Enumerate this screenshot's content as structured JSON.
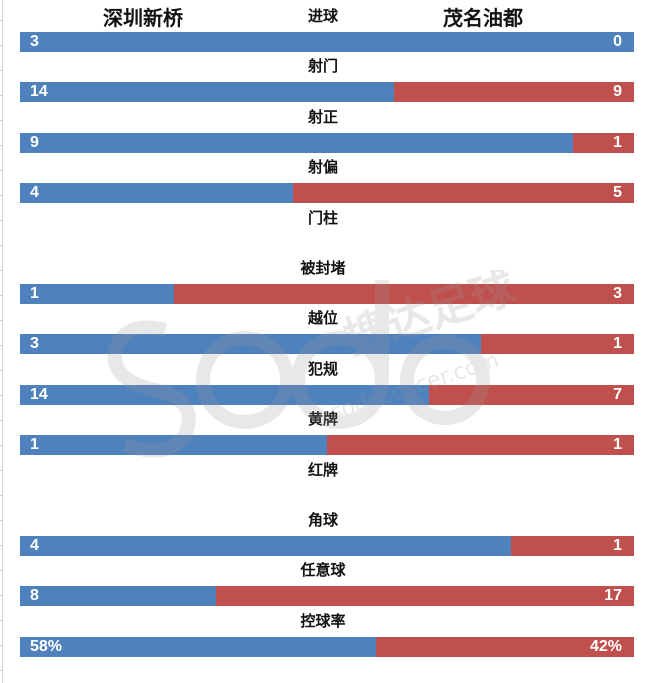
{
  "header": {
    "home_team": "深圳新桥",
    "away_team": "茂名油都"
  },
  "colors": {
    "home": "#4F81BD",
    "away": "#C0504D",
    "label_text": "#111111",
    "value_text": "#FFFFFF"
  },
  "watermark": {
    "cn_text": "搜达足球",
    "en_text": "sodasoccer.com",
    "logo_text": "sodo"
  },
  "stats": [
    {
      "label": "进球",
      "home": "3",
      "away": "0",
      "home_num": 3,
      "away_num": 0,
      "has_bar": true
    },
    {
      "label": "射门",
      "home": "14",
      "away": "9",
      "home_num": 14,
      "away_num": 9,
      "has_bar": true
    },
    {
      "label": "射正",
      "home": "9",
      "away": "1",
      "home_num": 9,
      "away_num": 1,
      "has_bar": true
    },
    {
      "label": "射偏",
      "home": "4",
      "away": "5",
      "home_num": 4,
      "away_num": 5,
      "has_bar": true
    },
    {
      "label": "门柱",
      "home": "",
      "away": "",
      "home_num": 0,
      "away_num": 0,
      "has_bar": false
    },
    {
      "label": "被封堵",
      "home": "1",
      "away": "3",
      "home_num": 1,
      "away_num": 3,
      "has_bar": true
    },
    {
      "label": "越位",
      "home": "3",
      "away": "1",
      "home_num": 3,
      "away_num": 1,
      "has_bar": true
    },
    {
      "label": "犯规",
      "home": "14",
      "away": "7",
      "home_num": 14,
      "away_num": 7,
      "has_bar": true
    },
    {
      "label": "黄牌",
      "home": "1",
      "away": "1",
      "home_num": 1,
      "away_num": 1,
      "has_bar": true
    },
    {
      "label": "红牌",
      "home": "",
      "away": "",
      "home_num": 0,
      "away_num": 0,
      "has_bar": false
    },
    {
      "label": "角球",
      "home": "4",
      "away": "1",
      "home_num": 4,
      "away_num": 1,
      "has_bar": true
    },
    {
      "label": "任意球",
      "home": "8",
      "away": "17",
      "home_num": 8,
      "away_num": 17,
      "has_bar": true
    },
    {
      "label": "控球率",
      "home": "58%",
      "away": "42%",
      "home_num": 58,
      "away_num": 42,
      "has_bar": true
    }
  ],
  "chart_data": {
    "type": "bar",
    "orientation": "horizontal-stacked-100",
    "title": "",
    "categories": [
      "进球",
      "射门",
      "射正",
      "射偏",
      "门柱",
      "被封堵",
      "越位",
      "犯规",
      "黄牌",
      "红牌",
      "角球",
      "任意球",
      "控球率"
    ],
    "series": [
      {
        "name": "深圳新桥",
        "color": "#4F81BD",
        "values": [
          3,
          14,
          9,
          4,
          null,
          1,
          3,
          14,
          1,
          null,
          4,
          8,
          58
        ]
      },
      {
        "name": "茂名油都",
        "color": "#C0504D",
        "values": [
          0,
          9,
          1,
          5,
          null,
          3,
          1,
          7,
          1,
          null,
          1,
          17,
          42
        ]
      }
    ],
    "value_labels": {
      "控球率": [
        "58%",
        "42%"
      ]
    },
    "legend": {
      "position": "top",
      "entries": [
        "深圳新桥",
        "茂名油都"
      ]
    },
    "grid": false,
    "xlabel": "",
    "ylabel": ""
  }
}
